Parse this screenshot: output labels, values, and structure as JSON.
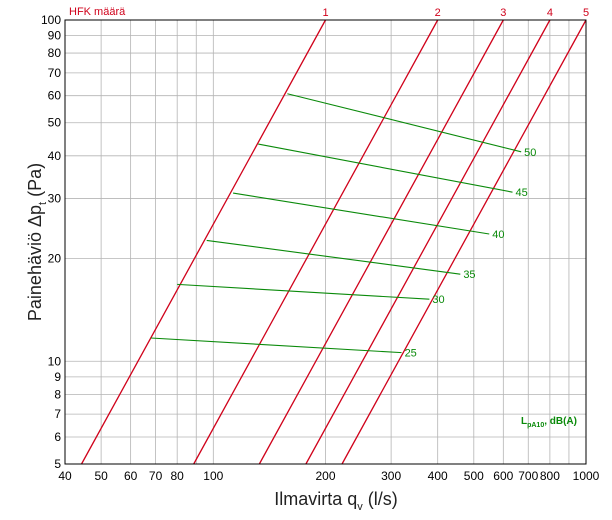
{
  "chart_data": {
    "type": "line",
    "title": "HFK määrä",
    "xlabel": {
      "main": "Ilmavirta q",
      "sub": "v",
      "unit": " (l/s)"
    },
    "ylabel": {
      "main": "Painehäviö Δp",
      "sub": "t",
      "unit": " (Pa)"
    },
    "xscale": "log",
    "yscale": "log",
    "xlim": [
      40,
      1000
    ],
    "ylim": [
      5,
      100
    ],
    "grid": true,
    "x_ticks": [
      40,
      50,
      60,
      70,
      80,
      100,
      200,
      300,
      400,
      500,
      600,
      700,
      800,
      1000
    ],
    "x_tick_labels": [
      "40",
      "50",
      "60",
      "70",
      "80",
      "100",
      "200",
      "300",
      "400",
      "500",
      "600",
      "700",
      "800",
      "1000"
    ],
    "x_minor": [
      90,
      900
    ],
    "y_ticks": [
      5,
      6,
      7,
      8,
      9,
      10,
      20,
      30,
      40,
      50,
      60,
      70,
      80,
      90,
      100
    ],
    "y_tick_labels": [
      "5",
      "6",
      "7",
      "8",
      "9",
      "10",
      "20",
      "30",
      "40",
      "50",
      "60",
      "70",
      "80",
      "90",
      "100"
    ],
    "noise_label": {
      "main": "L",
      "sub": "pA10",
      "rest": ", dB(A)"
    },
    "colors": {
      "hfk": "#d0021b",
      "noise": "#0a8a0a",
      "grid": "#b4b4b4"
    },
    "hfk_lines": [
      {
        "label": "1",
        "points": [
          [
            44.3,
            5
          ],
          [
            200,
            100
          ]
        ]
      },
      {
        "label": "2",
        "points": [
          [
            88.6,
            5
          ],
          [
            400,
            100
          ]
        ]
      },
      {
        "label": "3",
        "points": [
          [
            132.9,
            5
          ],
          [
            600,
            100
          ]
        ]
      },
      {
        "label": "4",
        "points": [
          [
            177.2,
            5
          ],
          [
            800,
            100
          ]
        ]
      },
      {
        "label": "5",
        "points": [
          [
            221.5,
            5
          ],
          [
            1000,
            100
          ]
        ]
      }
    ],
    "noise_lines": [
      {
        "label": "25",
        "points": [
          [
            68,
            11.7
          ],
          [
            320,
            10.6
          ]
        ]
      },
      {
        "label": "30",
        "points": [
          [
            80,
            16.8
          ],
          [
            380,
            15.2
          ]
        ]
      },
      {
        "label": "35",
        "points": [
          [
            96,
            22.6
          ],
          [
            460,
            18.0
          ]
        ]
      },
      {
        "label": "40",
        "points": [
          [
            113,
            31.1
          ],
          [
            550,
            23.6
          ]
        ]
      },
      {
        "label": "45",
        "points": [
          [
            132,
            43.3
          ],
          [
            635,
            31.3
          ]
        ]
      },
      {
        "label": "50",
        "points": [
          [
            158,
            60.8
          ],
          [
            670,
            41.1
          ]
        ]
      }
    ]
  }
}
